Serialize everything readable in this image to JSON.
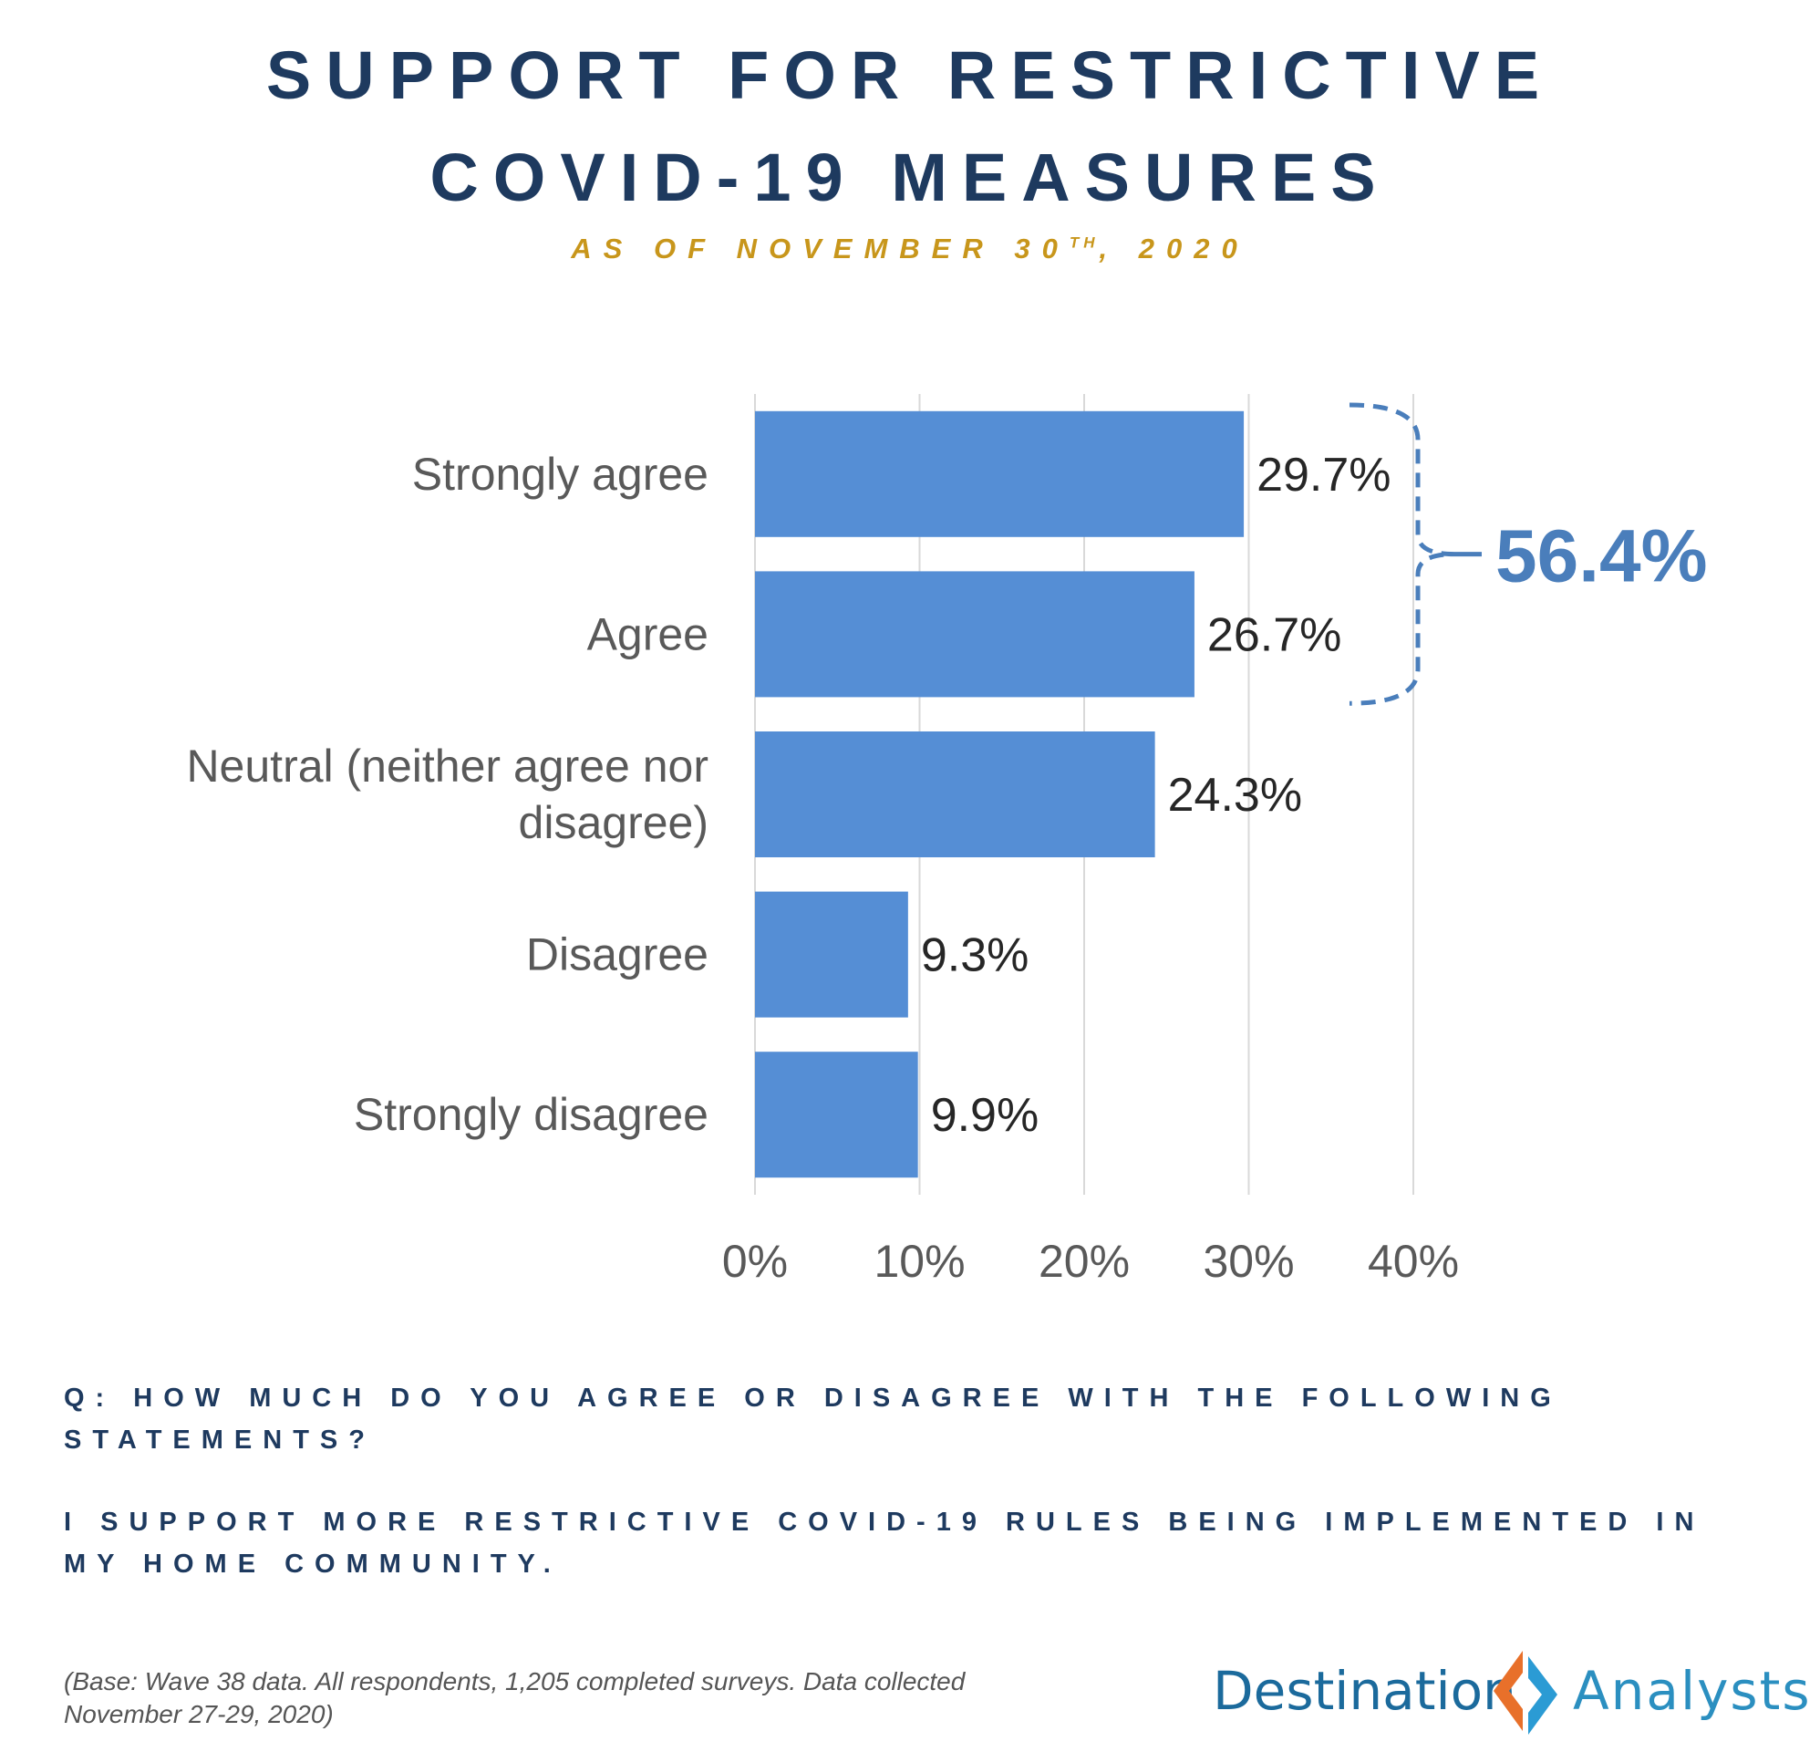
{
  "header": {
    "title_line1": "SUPPORT FOR RESTRICTIVE",
    "title_line2": "COVID-19 MEASURES",
    "subtitle_pre": "AS OF NOVEMBER 30",
    "subtitle_sup": "TH",
    "subtitle_post": ", 2020"
  },
  "chart_data": {
    "type": "bar",
    "orientation": "horizontal",
    "categories": [
      "Strongly agree",
      "Agree",
      "Neutral (neither agree nor disagree)",
      "Disagree",
      "Strongly disagree"
    ],
    "values": [
      29.7,
      26.7,
      24.3,
      9.3,
      9.9
    ],
    "data_labels": [
      "29.7%",
      "26.7%",
      "24.3%",
      "9.3%",
      "9.9%"
    ],
    "xlim": [
      0,
      40
    ],
    "xticks": [
      "0%",
      "10%",
      "20%",
      "30%",
      "40%"
    ],
    "grid": "vertical",
    "bar_color": "#558ed5",
    "annotation": {
      "label": "56.4%",
      "spans_categories": [
        "Strongly agree",
        "Agree"
      ],
      "color": "#4a7ebb"
    }
  },
  "question": {
    "line1": "Q: HOW MUCH DO YOU AGREE OR DISAGREE WITH THE FOLLOWING STATEMENTS?",
    "line2": "I SUPPORT MORE RESTRICTIVE COVID-19 RULES BEING IMPLEMENTED IN MY HOME COMMUNITY."
  },
  "footnote": "(Base: Wave 38 data. All respondents, 1,205 completed surveys. Data collected November 27-29, 2020)",
  "logo": {
    "word1": "Destination",
    "word2": "Analysts",
    "colors": {
      "orange": "#e8702a",
      "blue": "#2b9bd4"
    }
  }
}
